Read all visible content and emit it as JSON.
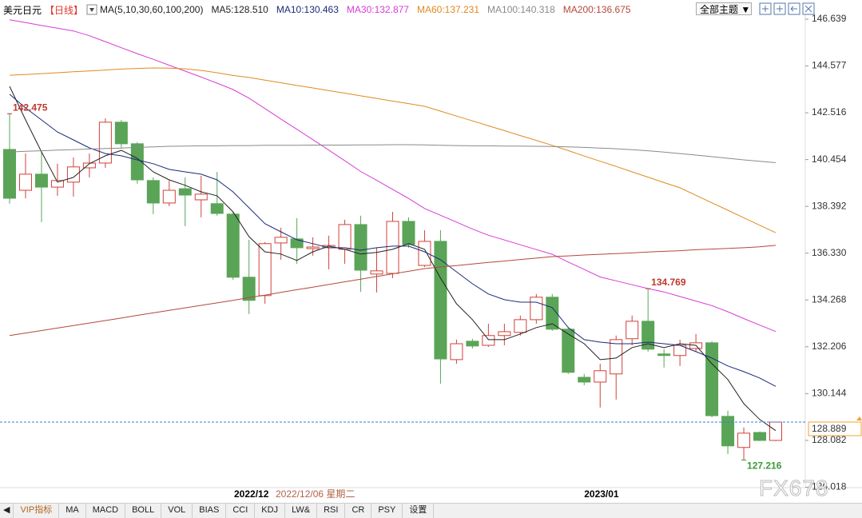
{
  "chart_data": {
    "type": "candlestick",
    "symbol": "美元日元",
    "period": "【日线】",
    "indicator": "MA(5,10,30,60,100,200)",
    "theme_button": "全部主题",
    "cursor_label": "2022/12/06 星期二",
    "watermark": "FX678",
    "toolbar": [
      "VIP指标",
      "MA",
      "MACD",
      "BOLL",
      "VOL",
      "BIAS",
      "CCI",
      "KDJ",
      "LW&",
      "RSI",
      "CR",
      "PSY",
      "设置"
    ],
    "categories": [
      null,
      null,
      null,
      null,
      null,
      null,
      null,
      null,
      null,
      null,
      null,
      null,
      null,
      null,
      null,
      "2022/12",
      null,
      null,
      null,
      null,
      null,
      null,
      null,
      null,
      null,
      null,
      null,
      null,
      null,
      null,
      null,
      null,
      null,
      null,
      null,
      null,
      null,
      "2023/01",
      null,
      null,
      null,
      null,
      null,
      null,
      null,
      null,
      null,
      null,
      null
    ],
    "up_color": "#d0413a",
    "down_color": "#5aa457",
    "open": [
      140.9,
      139.1,
      139.81,
      139.24,
      139.46,
      140.09,
      140.3,
      142.1,
      141.15,
      139.53,
      138.54,
      139.17,
      138.68,
      138.51,
      138.05,
      135.27,
      134.46,
      136.78,
      136.96,
      136.53,
      136.57,
      136.5,
      137.59,
      135.41,
      135.44,
      137.73,
      135.79,
      136.85,
      131.64,
      132.45,
      132.27,
      132.7,
      132.84,
      133.4,
      134.39,
      132.98,
      130.86,
      130.65,
      131.01,
      132.56,
      133.33,
      131.89,
      131.82,
      132.13,
      132.38,
      129.14,
      127.77,
      128.43,
      128.08
    ],
    "high": [
      142.475,
      140.72,
      140.79,
      140.27,
      140.55,
      140.72,
      142.27,
      142.2,
      141.22,
      139.67,
      139.53,
      139.67,
      139.74,
      139.91,
      138.15,
      136.92,
      136.82,
      137.45,
      137.87,
      137.03,
      137.1,
      137.8,
      137.98,
      136.57,
      138.15,
      137.91,
      137.34,
      137.34,
      132.52,
      132.56,
      133.22,
      133.22,
      133.58,
      134.53,
      134.53,
      133.05,
      131.01,
      131.46,
      132.7,
      133.58,
      134.769,
      132.1,
      132.52,
      132.77,
      132.45,
      129.39,
      128.65,
      128.47,
      128.889
    ],
    "low": [
      138.51,
      138.75,
      137.7,
      138.86,
      138.82,
      139.67,
      140.09,
      140.97,
      139.39,
      138.05,
      138.4,
      137.52,
      137.91,
      137.98,
      135.16,
      133.65,
      134.1,
      136.04,
      135.86,
      136.22,
      135.62,
      135.86,
      134.63,
      134.6,
      135.23,
      136.57,
      135.72,
      130.58,
      131.46,
      132.13,
      132.2,
      132.27,
      132.7,
      133.22,
      132.91,
      131.01,
      130.51,
      129.53,
      129.88,
      132.27,
      131.99,
      131.29,
      131.36,
      131.99,
      129.1,
      127.48,
      127.216,
      128.05,
      128.05
    ],
    "close": [
      138.75,
      139.81,
      139.24,
      139.53,
      140.13,
      140.3,
      142.1,
      141.15,
      139.56,
      138.54,
      139.1,
      138.89,
      138.93,
      138.08,
      135.27,
      134.25,
      136.75,
      137.03,
      136.57,
      136.6,
      136.67,
      137.59,
      135.58,
      135.55,
      137.73,
      136.71,
      136.85,
      131.67,
      132.34,
      132.24,
      132.7,
      132.87,
      133.4,
      134.39,
      132.98,
      131.08,
      130.65,
      131.15,
      132.52,
      133.33,
      132.1,
      131.82,
      132.27,
      132.38,
      129.17,
      127.84,
      128.4,
      128.08,
      128.889
    ],
    "lines": [
      {
        "name": "MA5:128.510",
        "color": "#222222",
        "values": [
          143.68,
          142.2,
          140.79,
          139.46,
          139.67,
          140.27,
          140.62,
          140.86,
          140.51,
          139.91,
          139.56,
          139.32,
          139.03,
          138.86,
          138.15,
          137.06,
          136.39,
          136.29,
          136.01,
          136.39,
          136.64,
          136.5,
          136.29,
          136.36,
          136.5,
          136.75,
          136.5,
          135.23,
          134.1,
          133.4,
          132.52,
          132.52,
          132.77,
          133.05,
          133.22,
          132.77,
          132.34,
          131.64,
          131.71,
          132.17,
          132.34,
          132.17,
          132.34,
          132.27,
          131.46,
          130.76,
          129.7,
          129.0,
          128.51
        ]
      },
      {
        "name": "MA10:130.463",
        "color": "#1c2a78",
        "values": [
          143.33,
          142.73,
          142.2,
          141.67,
          141.32,
          140.97,
          140.72,
          140.62,
          140.44,
          140.27,
          140.02,
          139.91,
          139.81,
          139.56,
          139.03,
          138.33,
          137.63,
          137.27,
          136.92,
          136.75,
          136.57,
          136.57,
          136.46,
          136.57,
          136.64,
          136.64,
          136.39,
          136.04,
          135.51,
          134.98,
          134.53,
          134.28,
          134.17,
          134.17,
          133.93,
          133.05,
          132.52,
          132.41,
          132.34,
          132.34,
          132.41,
          132.34,
          132.27,
          131.99,
          131.71,
          131.36,
          131.11,
          130.83,
          130.463
        ]
      },
      {
        "name": "MA30:132.877",
        "color": "#d63cd6",
        "values": [
          146.61,
          146.49,
          146.36,
          146.24,
          146.12,
          145.91,
          145.65,
          145.38,
          145.12,
          144.87,
          144.61,
          144.35,
          144.09,
          143.82,
          143.54,
          143.16,
          142.7,
          142.24,
          141.79,
          141.33,
          140.87,
          140.4,
          139.93,
          139.54,
          139.14,
          138.74,
          138.3,
          138.0,
          137.7,
          137.39,
          137.12,
          136.91,
          136.7,
          136.49,
          136.28,
          135.94,
          135.61,
          135.28,
          135.11,
          134.94,
          134.77,
          134.62,
          134.42,
          134.22,
          134.02,
          133.75,
          133.45,
          133.16,
          132.877
        ]
      },
      {
        "name": "MA60:137.231",
        "color": "#e08a1e",
        "values": [
          144.17,
          144.2,
          144.24,
          144.28,
          144.32,
          144.36,
          144.4,
          144.44,
          144.47,
          144.49,
          144.48,
          144.45,
          144.38,
          144.28,
          144.16,
          144.07,
          143.95,
          143.84,
          143.72,
          143.61,
          143.49,
          143.38,
          143.26,
          143.15,
          143.03,
          142.92,
          142.8,
          142.59,
          142.37,
          142.16,
          141.94,
          141.73,
          141.51,
          141.3,
          141.08,
          140.85,
          140.61,
          140.38,
          140.15,
          139.91,
          139.68,
          139.44,
          139.21,
          138.88,
          138.55,
          138.22,
          137.89,
          137.56,
          137.231
        ]
      },
      {
        "name": "MA100:140.318",
        "color": "#8a8a8a",
        "values": [
          140.79,
          140.82,
          140.84,
          140.87,
          140.89,
          140.92,
          140.94,
          140.96,
          140.99,
          141.01,
          141.04,
          141.05,
          141.06,
          141.06,
          141.07,
          141.07,
          141.08,
          141.08,
          141.08,
          141.09,
          141.09,
          141.09,
          141.1,
          141.1,
          141.11,
          141.11,
          141.1,
          141.08,
          141.07,
          141.06,
          141.06,
          141.05,
          141.05,
          141.04,
          141.03,
          141.01,
          140.99,
          140.96,
          140.93,
          140.89,
          140.84,
          140.78,
          140.72,
          140.65,
          140.58,
          140.51,
          140.44,
          140.38,
          140.318
        ]
      },
      {
        "name": "MA200:136.675",
        "color": "#b5483c",
        "values": [
          132.7,
          132.81,
          132.92,
          133.03,
          133.14,
          133.25,
          133.36,
          133.47,
          133.59,
          133.7,
          133.81,
          133.92,
          134.03,
          134.14,
          134.25,
          134.37,
          134.48,
          134.6,
          134.72,
          134.83,
          134.95,
          135.07,
          135.18,
          135.3,
          135.42,
          135.53,
          135.65,
          135.72,
          135.78,
          135.85,
          135.92,
          135.98,
          136.05,
          136.11,
          136.18,
          136.21,
          136.25,
          136.28,
          136.31,
          136.34,
          136.38,
          136.41,
          136.44,
          136.48,
          136.51,
          136.54,
          136.57,
          136.61,
          136.675
        ]
      }
    ],
    "annotations": [
      {
        "label": "142.475",
        "value": 142.475,
        "color": "#c0392b"
      },
      {
        "label": "134.769",
        "value": 134.769,
        "color": "#c0392b"
      },
      {
        "label": "127.216",
        "value": 127.216,
        "color": "#3a9a3a"
      }
    ],
    "last_price": {
      "label": "128.889",
      "value": 128.889,
      "color": "#3a7bd5"
    },
    "ylim": [
      126.0,
      146.85
    ],
    "yticks": [
      146.639,
      144.577,
      142.516,
      140.454,
      138.392,
      {
        "value": 136.33,
        "label": "136.330"
      },
      134.268,
      132.206,
      130.144,
      128.082,
      126.018
    ],
    "grid": false
  }
}
